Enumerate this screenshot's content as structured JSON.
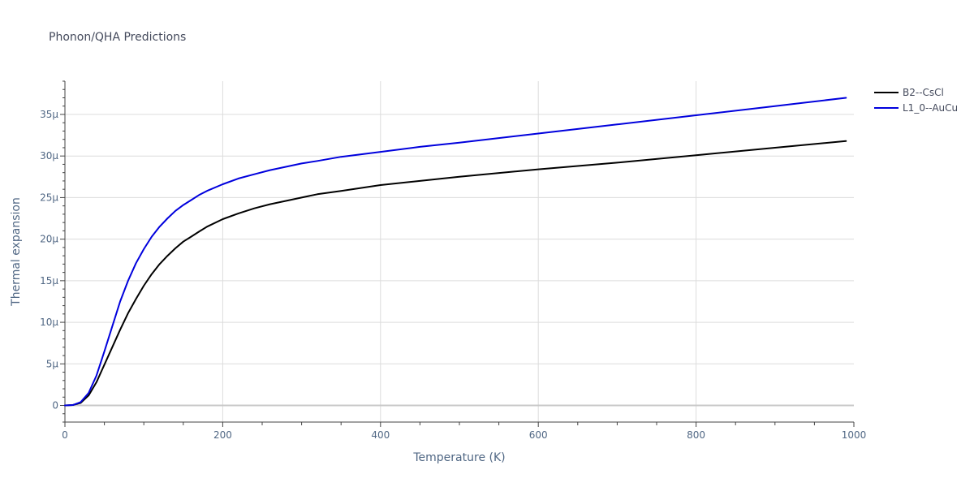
{
  "chart_data": {
    "type": "line",
    "title": "Phonon/QHA Predictions",
    "xlabel": "Temperature (K)",
    "ylabel": "Thermal expansion",
    "xlim": [
      0,
      1000
    ],
    "ylim": [
      -2e-06,
      3.9e-05
    ],
    "grid": true,
    "legend_position": "top-right",
    "x_ticks": [
      {
        "value": 0,
        "label": "0"
      },
      {
        "value": 200,
        "label": "200"
      },
      {
        "value": 400,
        "label": "400"
      },
      {
        "value": 600,
        "label": "600"
      },
      {
        "value": 800,
        "label": "800"
      },
      {
        "value": 1000,
        "label": "1000"
      }
    ],
    "y_ticks": [
      {
        "value": 0,
        "label": "0"
      },
      {
        "value": 5e-06,
        "label": "5μ"
      },
      {
        "value": 1e-05,
        "label": "10μ"
      },
      {
        "value": 1.5e-05,
        "label": "15μ"
      },
      {
        "value": 2e-05,
        "label": "20μ"
      },
      {
        "value": 2.5e-05,
        "label": "25μ"
      },
      {
        "value": 3e-05,
        "label": "30μ"
      },
      {
        "value": 3.5e-05,
        "label": "35μ"
      }
    ],
    "series": [
      {
        "name": "B2--CsCl",
        "color": "#000000",
        "x": [
          0,
          10,
          20,
          30,
          40,
          50,
          60,
          70,
          80,
          90,
          100,
          110,
          120,
          130,
          140,
          150,
          160,
          170,
          180,
          200,
          220,
          240,
          260,
          280,
          300,
          320,
          350,
          400,
          450,
          500,
          600,
          700,
          800,
          900,
          990
        ],
        "y": [
          0,
          5e-08,
          3e-07,
          1.2e-06,
          2.8e-06,
          4.9e-06,
          7e-06,
          9.1e-06,
          1.11e-05,
          1.28e-05,
          1.44e-05,
          1.58e-05,
          1.7e-05,
          1.8e-05,
          1.89e-05,
          1.97e-05,
          2.03e-05,
          2.09e-05,
          2.15e-05,
          2.24e-05,
          2.31e-05,
          2.37e-05,
          2.42e-05,
          2.46e-05,
          2.5e-05,
          2.54e-05,
          2.58e-05,
          2.65e-05,
          2.7e-05,
          2.75e-05,
          2.84e-05,
          2.92e-05,
          3.01e-05,
          3.1e-05,
          3.18e-05
        ]
      },
      {
        "name": "L1_0--AuCu",
        "color": "#0000dd",
        "x": [
          0,
          10,
          20,
          30,
          40,
          50,
          60,
          70,
          80,
          90,
          100,
          110,
          120,
          130,
          140,
          150,
          160,
          170,
          180,
          200,
          220,
          240,
          260,
          280,
          300,
          320,
          350,
          400,
          450,
          500,
          600,
          700,
          800,
          900,
          990
        ],
        "y": [
          0,
          5e-08,
          4e-07,
          1.5e-06,
          3.6e-06,
          6.5e-06,
          9.5e-06,
          1.25e-05,
          1.5e-05,
          1.71e-05,
          1.88e-05,
          2.03e-05,
          2.15e-05,
          2.25e-05,
          2.34e-05,
          2.41e-05,
          2.47e-05,
          2.53e-05,
          2.58e-05,
          2.66e-05,
          2.73e-05,
          2.78e-05,
          2.83e-05,
          2.87e-05,
          2.91e-05,
          2.94e-05,
          2.99e-05,
          3.05e-05,
          3.11e-05,
          3.16e-05,
          3.27e-05,
          3.38e-05,
          3.49e-05,
          3.6e-05,
          3.7e-05
        ]
      }
    ]
  }
}
